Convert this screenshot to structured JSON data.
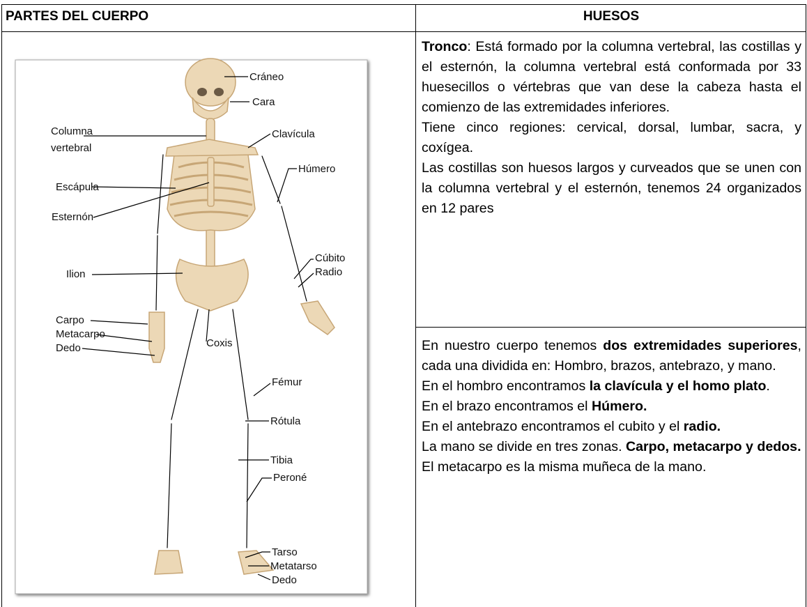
{
  "table": {
    "headers": [
      "PARTES DEL CUERPO",
      "HUESOS"
    ],
    "image": {
      "labels": [
        "Cráneo",
        "Cara",
        "Columna",
        "vertebral",
        "Clavícula",
        "Húmero",
        "Escápula",
        "Esternón",
        "Cúbito",
        "Radio",
        "Ilion",
        "Carpo",
        "Metacarpo",
        "Dedo",
        "Coxis",
        "Fémur",
        "Rótula",
        "Tibia",
        "Peroné",
        "Tarso",
        "Metatarso",
        "Dedo"
      ]
    },
    "cells": [
      {
        "paragraphs": [
          [
            {
              "text": "Tronco",
              "bold": true
            },
            {
              "text": ": Está formado por la columna vertebral, las costillas y el esternón, la columna vertebral está conformada por 33 huesecillos o vértebras que van dese la cabeza hasta el comienzo de las extremidades inferiores."
            }
          ],
          [
            {
              "text": "Tiene cinco regiones: cervical, dorsal, lumbar, sacra, y coxígea."
            }
          ],
          [
            {
              "text": "Las costillas son huesos largos y curveados que se unen con la columna vertebral y el esternón, tenemos 24 organizados en 12 pares"
            }
          ]
        ]
      },
      {
        "paragraphs": [
          [
            {
              "text": "En nuestro cuerpo tenemos "
            },
            {
              "text": "dos extremidades superiores",
              "bold": true
            },
            {
              "text": ", cada una dividida en: Hombro, brazos, antebrazo, y mano."
            }
          ],
          [
            {
              "text": " En el hombro encontramos "
            },
            {
              "text": "la clavícula y el homo plato",
              "bold": true
            },
            {
              "text": "."
            }
          ],
          [
            {
              "text": "En el brazo encontramos el "
            },
            {
              "text": "Húmero.",
              "bold": true
            }
          ],
          [
            {
              "text": "En el antebrazo encontramos el cubito y el "
            },
            {
              "text": "radio.",
              "bold": true
            }
          ],
          [
            {
              "text": "La mano se divide en tres zonas. "
            },
            {
              "text": "Carpo, metacarpo y dedos.",
              "bold": true
            }
          ],
          [
            {
              "text": "El metacarpo es la misma muñeca de la mano."
            }
          ]
        ]
      }
    ]
  }
}
